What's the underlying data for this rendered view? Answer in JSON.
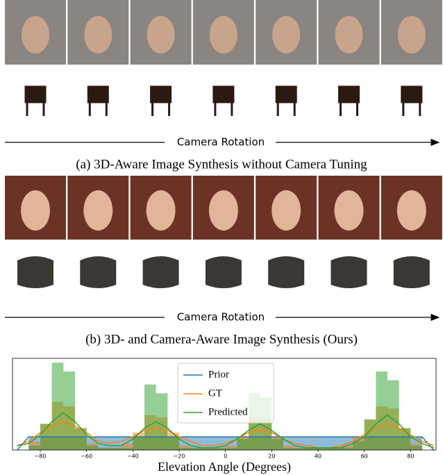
{
  "panel_a": {
    "arrow_label": "Camera Rotation",
    "caption": "(a) 3D-Aware Image Synthesis without Camera Tuning"
  },
  "panel_b": {
    "arrow_label": "Camera Rotation",
    "caption": "(b) 3D- and Camera-Aware Image Synthesis (Ours)"
  },
  "chart_data": {
    "type": "histogram",
    "xlabel": "Elevation Angle (Degrees)",
    "bins": [
      -90,
      -85,
      -80,
      -75,
      -70,
      -65,
      -60,
      -55,
      -50,
      -45,
      -40,
      -35,
      -30,
      -25,
      -20,
      -15,
      -10,
      -5,
      0,
      5,
      10,
      15,
      20,
      25,
      30,
      35,
      40,
      45,
      50,
      55,
      60,
      65,
      70,
      75,
      80,
      85,
      90
    ],
    "curve_x": [
      -90,
      -85,
      -80,
      -75,
      -70,
      -65,
      -60,
      -55,
      -50,
      -45,
      -40,
      -35,
      -30,
      -25,
      -20,
      -15,
      -10,
      -5,
      0,
      5,
      10,
      15,
      20,
      25,
      30,
      35,
      40,
      45,
      50,
      55,
      60,
      65,
      70,
      75,
      80,
      85,
      90
    ],
    "series": [
      {
        "name": "Prior",
        "color": "#1f77b4",
        "values": [
          0,
          0.006,
          0.006,
          0.006,
          0.006,
          0.006,
          0.006,
          0.006,
          0.006,
          0.006,
          0.006,
          0.006,
          0.006,
          0.006,
          0.006,
          0.006,
          0.006,
          0.006,
          0.006,
          0.006,
          0.006,
          0.006,
          0.006,
          0.006,
          0.006,
          0.006,
          0.006,
          0.006,
          0.006,
          0.006,
          0.006,
          0.006,
          0.006,
          0.006,
          0.006,
          0
        ],
        "curve": [
          0,
          0.006,
          0.006,
          0.006,
          0.006,
          0.006,
          0.006,
          0.006,
          0.006,
          0.006,
          0.006,
          0.006,
          0.006,
          0.006,
          0.006,
          0.006,
          0.006,
          0.006,
          0.006,
          0.006,
          0.006,
          0.006,
          0.006,
          0.006,
          0.006,
          0.006,
          0.006,
          0.006,
          0.006,
          0.006,
          0.006,
          0.006,
          0.006,
          0.006,
          0.006,
          0.006,
          0
        ]
      },
      {
        "name": "GT",
        "color": "#ff7f0e",
        "values": [
          0,
          0.004,
          0.012,
          0.022,
          0.02,
          0.01,
          0.003,
          0.001,
          0.001,
          0.003,
          0.008,
          0.016,
          0.015,
          0.008,
          0.002,
          0.001,
          0.001,
          0.001,
          0.002,
          0.006,
          0.015,
          0.014,
          0.006,
          0.002,
          0.001,
          0.001,
          0.001,
          0.001,
          0.002,
          0.006,
          0.014,
          0.02,
          0.019,
          0.01,
          0.003,
          0
        ],
        "curve": [
          0.002,
          0.004,
          0.008,
          0.011,
          0.013,
          0.011,
          0.008,
          0.004,
          0.003,
          0.004,
          0.006,
          0.009,
          0.01,
          0.009,
          0.006,
          0.004,
          0.002,
          0.002,
          0.003,
          0.005,
          0.008,
          0.009,
          0.008,
          0.005,
          0.003,
          0.002,
          0.001,
          0.001,
          0.002,
          0.004,
          0.007,
          0.01,
          0.012,
          0.01,
          0.007,
          0.004,
          0.002
        ]
      },
      {
        "name": "Predicted",
        "color": "#2ca02c",
        "values": [
          0,
          0.002,
          0.012,
          0.04,
          0.036,
          0.01,
          0.002,
          0.001,
          0.001,
          0.001,
          0.006,
          0.03,
          0.026,
          0.006,
          0.001,
          0.001,
          0.001,
          0.001,
          0.001,
          0.005,
          0.026,
          0.024,
          0.005,
          0.001,
          0.001,
          0.001,
          0.001,
          0.001,
          0.001,
          0.004,
          0.014,
          0.036,
          0.032,
          0.01,
          0.002,
          0
        ],
        "curve": [
          0.002,
          0.003,
          0.007,
          0.013,
          0.017,
          0.013,
          0.007,
          0.003,
          0.002,
          0.002,
          0.005,
          0.01,
          0.013,
          0.01,
          0.005,
          0.002,
          0.001,
          0.001,
          0.002,
          0.005,
          0.009,
          0.012,
          0.009,
          0.005,
          0.002,
          0.001,
          0.001,
          0.001,
          0.001,
          0.003,
          0.006,
          0.012,
          0.016,
          0.012,
          0.006,
          0.003,
          0.001
        ]
      }
    ],
    "xlim": [
      -92,
      91
    ],
    "ylim": [
      0,
      0.042
    ],
    "xticks": [
      {
        "value": -80,
        "label": "−80"
      },
      {
        "value": -60,
        "label": "−60"
      },
      {
        "value": -40,
        "label": "−40"
      },
      {
        "value": -20,
        "label": "−20"
      },
      0,
      20,
      40,
      60,
      80
    ],
    "legend": "upper center"
  }
}
